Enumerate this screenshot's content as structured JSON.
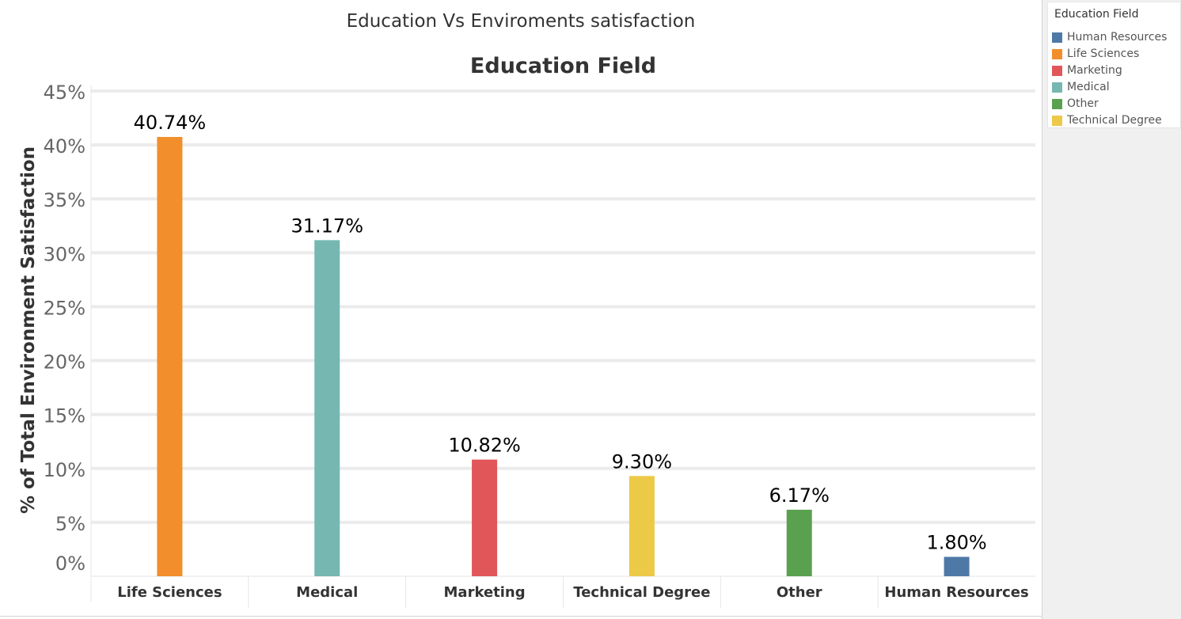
{
  "sheet": {
    "title": "Education Vs Enviroments satisfaction"
  },
  "legend": {
    "title": "Education Field",
    "items": [
      {
        "label": "Human Resources",
        "color": "#4e79a7"
      },
      {
        "label": "Life Sciences",
        "color": "#f28e2b"
      },
      {
        "label": "Marketing",
        "color": "#e15759"
      },
      {
        "label": "Medical",
        "color": "#76b7b2"
      },
      {
        "label": "Other",
        "color": "#59a14f"
      },
      {
        "label": "Technical Degree",
        "color": "#edc948"
      }
    ]
  },
  "chart_data": {
    "type": "bar",
    "title": "Education Field",
    "ylabel": "% of Total Environment Satisfaction",
    "xlabel": "",
    "ylim": [
      0,
      45
    ],
    "yticks": [
      "0%",
      "5%",
      "10%",
      "15%",
      "20%",
      "25%",
      "30%",
      "35%",
      "40%",
      "45%"
    ],
    "grid": true,
    "legend_position": "top-right",
    "categories": [
      "Life Sciences",
      "Medical",
      "Marketing",
      "Technical Degree",
      "Other",
      "Human Resources"
    ],
    "values": [
      40.74,
      31.17,
      10.82,
      9.3,
      6.17,
      1.8
    ],
    "data_labels": [
      "40.74%",
      "31.17%",
      "10.82%",
      "9.30%",
      "6.17%",
      "1.80%"
    ],
    "colors": [
      "#f28e2b",
      "#76b7b2",
      "#e15759",
      "#edc948",
      "#59a14f",
      "#4e79a7"
    ]
  }
}
